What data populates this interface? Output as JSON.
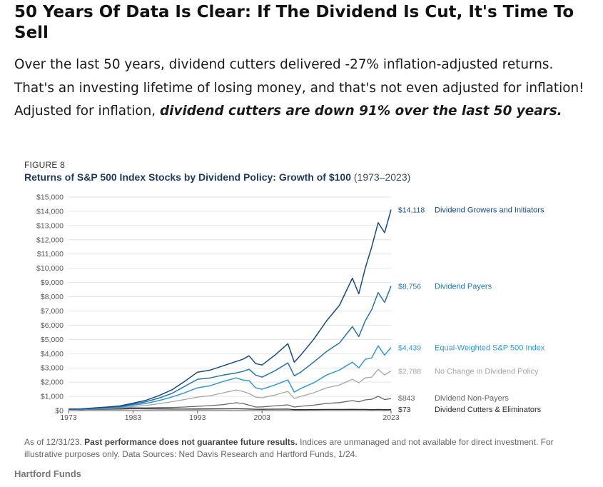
{
  "headline": "50 Years Of Data Is Clear: If The Dividend Is Cut, It's Time To Sell",
  "paragraph": {
    "part1": "Over the last 50 years, dividend cutters delivered -27% inflation-adjusted returns. That's an investing lifetime of losing money, and that's not even adjusted for inflation! Adjusted for inflation, ",
    "emphasis": "dividend cutters are down 91% over the last 50 years."
  },
  "figure": {
    "label": "FIGURE 8",
    "title_main": "Returns of S&P 500 Index Stocks by Dividend Policy: Growth of $100",
    "title_years": "(1973–2023)"
  },
  "chart_data": {
    "type": "line",
    "title": "Returns of S&P 500 Index Stocks by Dividend Policy: Growth of $100 (1973–2023)",
    "xlabel": "",
    "ylabel": "",
    "xlim": [
      1973,
      2023
    ],
    "ylim": [
      0,
      15000
    ],
    "grid": true,
    "x_ticks": [
      "1973",
      "1983",
      "1993",
      "2003",
      "2023"
    ],
    "x_tick_values": [
      1973,
      1983,
      1993,
      2003,
      2023
    ],
    "y_ticks": [
      "$0",
      "$1,000",
      "$2,000",
      "$3,000",
      "$4,000",
      "$5,000",
      "$6,000",
      "$7,000",
      "$8,000",
      "$9,000",
      "$10,000",
      "$11,000",
      "$12,000",
      "$13,000",
      "$14,000",
      "$15,000"
    ],
    "y_tick_values": [
      0,
      1000,
      2000,
      3000,
      4000,
      5000,
      6000,
      7000,
      8000,
      9000,
      10000,
      11000,
      12000,
      13000,
      14000,
      15000
    ],
    "x": [
      1973,
      1975,
      1977,
      1979,
      1981,
      1983,
      1985,
      1987,
      1989,
      1991,
      1993,
      1995,
      1997,
      1999,
      2000,
      2001,
      2002,
      2003,
      2005,
      2007,
      2008,
      2009,
      2011,
      2013,
      2015,
      2017,
      2018,
      2019,
      2020,
      2021,
      2022,
      2023
    ],
    "series": [
      {
        "name": "Dividend Growers and Initiators",
        "end_label": "$14,118",
        "color": "#1a4a78",
        "width": 1.5,
        "values": [
          100,
          120,
          190,
          250,
          330,
          520,
          720,
          1050,
          1450,
          2050,
          2700,
          2850,
          3150,
          3450,
          3600,
          3850,
          3300,
          3200,
          3900,
          4700,
          3400,
          3900,
          5000,
          6300,
          7400,
          9300,
          8200,
          10000,
          11500,
          13200,
          12500,
          14118
        ]
      },
      {
        "name": "Dividend Payers",
        "end_label": "$8,756",
        "color": "#2673a8",
        "width": 1.5,
        "values": [
          100,
          110,
          170,
          220,
          290,
          450,
          620,
          880,
          1200,
          1700,
          2200,
          2300,
          2500,
          2650,
          2750,
          2900,
          2500,
          2350,
          2800,
          3350,
          2450,
          2700,
          3400,
          4150,
          4750,
          5900,
          5200,
          6300,
          7100,
          8300,
          7600,
          8756
        ]
      },
      {
        "name": "Equal-Weighted S&P 500 Index",
        "end_label": "$4,439",
        "color": "#3299cc",
        "width": 1.5,
        "values": [
          100,
          90,
          140,
          180,
          240,
          380,
          500,
          700,
          950,
          1250,
          1600,
          1750,
          2050,
          2300,
          2150,
          2100,
          1600,
          1500,
          1800,
          2150,
          1300,
          1550,
          1950,
          2500,
          2850,
          3400,
          3000,
          3600,
          3700,
          4550,
          3900,
          4439
        ]
      },
      {
        "name": "No Change in Dividend Policy",
        "end_label": "$2,788",
        "color": "#a6a6a6",
        "width": 1.3,
        "values": [
          100,
          85,
          120,
          150,
          190,
          280,
          360,
          480,
          620,
          780,
          950,
          1050,
          1250,
          1450,
          1350,
          1200,
          950,
          900,
          1100,
          1350,
          850,
          1000,
          1250,
          1600,
          1800,
          2200,
          1950,
          2300,
          2350,
          2900,
          2500,
          2788
        ]
      },
      {
        "name": "Dividend Non-Payers",
        "end_label": "$843",
        "color": "#666666",
        "width": 1.3,
        "values": [
          100,
          70,
          100,
          130,
          160,
          200,
          190,
          210,
          220,
          250,
          300,
          350,
          420,
          550,
          500,
          380,
          250,
          260,
          330,
          400,
          250,
          300,
          380,
          500,
          560,
          700,
          620,
          750,
          800,
          1000,
          780,
          843
        ]
      },
      {
        "name": "Dividend Cutters & Eliminators",
        "end_label": "$73",
        "color": "#2b2b2b",
        "width": 1.3,
        "values": [
          100,
          75,
          90,
          100,
          110,
          130,
          120,
          115,
          110,
          105,
          110,
          115,
          120,
          125,
          120,
          110,
          95,
          90,
          100,
          105,
          70,
          70,
          75,
          80,
          80,
          85,
          78,
          80,
          72,
          80,
          70,
          73
        ]
      }
    ]
  },
  "footnote": {
    "prefix": "As of 12/31/23. ",
    "bold": "Past performance does not guarantee future results.",
    "rest": " Indices are unmanaged and not available for direct investment. For illustrative purposes only. Data Sources: Ned Davis Research and Hartford Funds, 1/24."
  },
  "source_label": "Hartford Funds"
}
